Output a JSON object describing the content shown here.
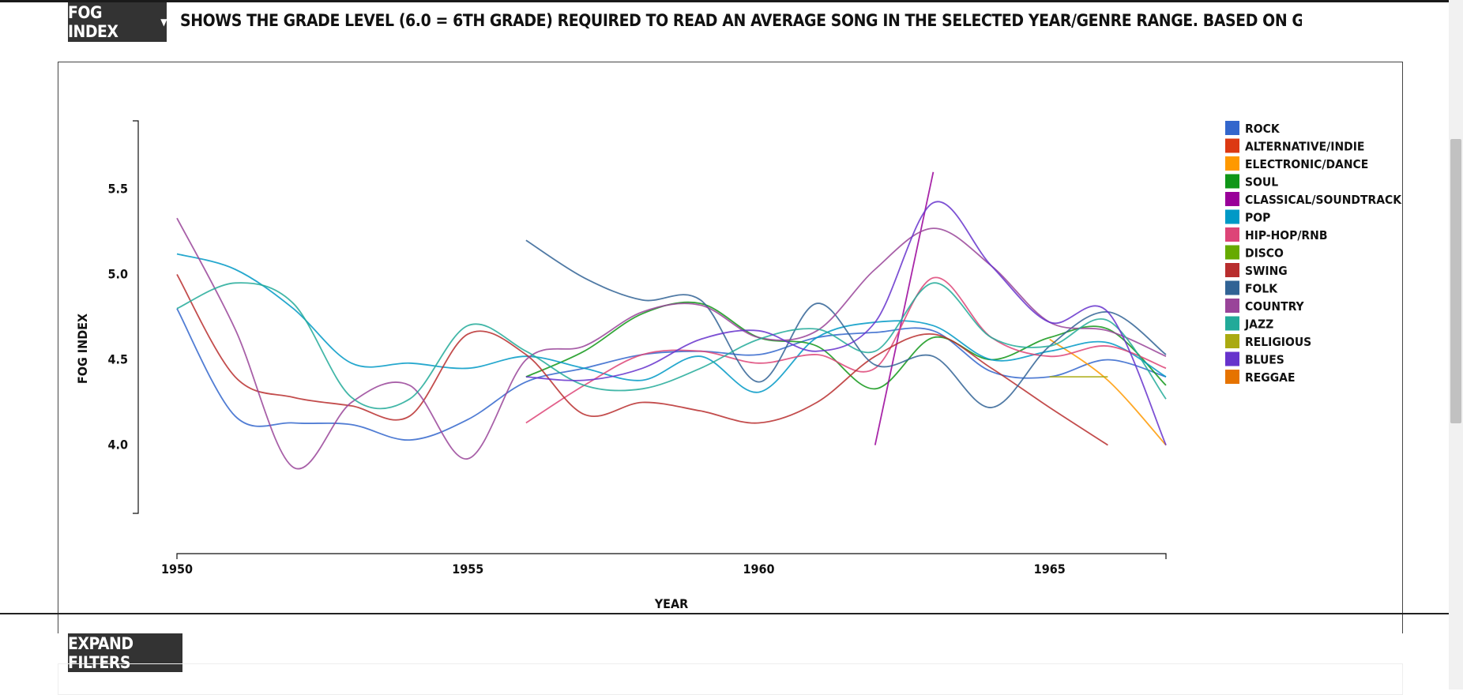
{
  "header": {
    "metric_label": "FOG INDEX",
    "description": "SHOWS THE GRADE LEVEL (6.0 = 6TH GRADE) REQUIRED TO READ AN AVERAGE SONG IN THE SELECTED YEAR/GENRE RANGE. BASED ON GUNNING-FOG READABILITY INDEX"
  },
  "controls": {
    "expand_filters_label": "EXPAND FILTERS"
  },
  "chart_data": {
    "type": "line",
    "xlabel": "YEAR",
    "ylabel": "FOG INDEX",
    "xlim": [
      1950,
      1967
    ],
    "ylim": [
      3.6,
      5.9
    ],
    "x_ticks": [
      1950,
      1955,
      1960,
      1965
    ],
    "y_ticks": [
      4.0,
      4.5,
      5.0,
      5.5
    ],
    "x_tick_labels": [
      "1950",
      "1955",
      "1960",
      "1965"
    ],
    "y_tick_labels": [
      "4.0",
      "4.5",
      "5.0",
      "5.5"
    ],
    "legend_position": "right",
    "grid": false,
    "series": [
      {
        "name": "ROCK",
        "color": "#3366cc",
        "points": [
          [
            1950,
            4.8
          ],
          [
            1951,
            4.17
          ],
          [
            1952,
            4.13
          ],
          [
            1953,
            4.12
          ],
          [
            1954,
            4.03
          ],
          [
            1955,
            4.15
          ],
          [
            1956,
            4.37
          ],
          [
            1957,
            4.45
          ],
          [
            1958,
            4.53
          ],
          [
            1959,
            4.55
          ],
          [
            1960,
            4.53
          ],
          [
            1961,
            4.63
          ],
          [
            1962,
            4.66
          ],
          [
            1963,
            4.67
          ],
          [
            1964,
            4.43
          ],
          [
            1965,
            4.4
          ],
          [
            1966,
            4.5
          ],
          [
            1967,
            4.4
          ]
        ]
      },
      {
        "name": "ALTERNATIVE/INDIE",
        "color": "#dc3912",
        "points": []
      },
      {
        "name": "ELECTRONIC/DANCE",
        "color": "#ff9900",
        "points": [
          [
            1965,
            4.62
          ],
          [
            1966,
            4.38
          ],
          [
            1967,
            4.0
          ]
        ]
      },
      {
        "name": "SOUL",
        "color": "#109618",
        "points": [
          [
            1956,
            4.4
          ],
          [
            1957,
            4.55
          ],
          [
            1958,
            4.77
          ],
          [
            1959,
            4.83
          ],
          [
            1960,
            4.63
          ],
          [
            1961,
            4.58
          ],
          [
            1962,
            4.33
          ],
          [
            1963,
            4.63
          ],
          [
            1964,
            4.5
          ],
          [
            1965,
            4.63
          ],
          [
            1966,
            4.68
          ],
          [
            1967,
            4.35
          ]
        ]
      },
      {
        "name": "CLASSICAL/SOUNDTRACK",
        "color": "#990099",
        "points": [
          [
            1962,
            4.0
          ],
          [
            1963,
            5.6
          ]
        ]
      },
      {
        "name": "POP",
        "color": "#0099c6",
        "points": [
          [
            1950,
            5.12
          ],
          [
            1951,
            5.03
          ],
          [
            1952,
            4.8
          ],
          [
            1953,
            4.48
          ],
          [
            1954,
            4.48
          ],
          [
            1955,
            4.45
          ],
          [
            1956,
            4.52
          ],
          [
            1957,
            4.45
          ],
          [
            1958,
            4.38
          ],
          [
            1959,
            4.52
          ],
          [
            1960,
            4.31
          ],
          [
            1961,
            4.63
          ],
          [
            1962,
            4.72
          ],
          [
            1963,
            4.7
          ],
          [
            1964,
            4.5
          ],
          [
            1965,
            4.55
          ],
          [
            1966,
            4.6
          ],
          [
            1967,
            4.4
          ]
        ]
      },
      {
        "name": "HIP-HOP/RNB",
        "color": "#dd4477",
        "points": [
          [
            1956,
            4.13
          ],
          [
            1957,
            4.35
          ],
          [
            1958,
            4.53
          ],
          [
            1959,
            4.55
          ],
          [
            1960,
            4.48
          ],
          [
            1961,
            4.53
          ],
          [
            1962,
            4.45
          ],
          [
            1963,
            4.98
          ],
          [
            1964,
            4.63
          ],
          [
            1965,
            4.52
          ],
          [
            1966,
            4.58
          ],
          [
            1967,
            4.45
          ]
        ]
      },
      {
        "name": "DISCO",
        "color": "#66aa00",
        "points": []
      },
      {
        "name": "SWING",
        "color": "#b82e2e",
        "points": [
          [
            1950,
            5.0
          ],
          [
            1951,
            4.4
          ],
          [
            1952,
            4.28
          ],
          [
            1953,
            4.23
          ],
          [
            1954,
            4.17
          ],
          [
            1955,
            4.65
          ],
          [
            1956,
            4.53
          ],
          [
            1957,
            4.18
          ],
          [
            1958,
            4.25
          ],
          [
            1959,
            4.2
          ],
          [
            1960,
            4.13
          ],
          [
            1961,
            4.25
          ],
          [
            1962,
            4.52
          ],
          [
            1963,
            4.65
          ],
          [
            1964,
            4.45
          ],
          [
            1965,
            4.22
          ],
          [
            1966,
            4.0
          ]
        ]
      },
      {
        "name": "FOLK",
        "color": "#316395",
        "points": [
          [
            1956,
            5.2
          ],
          [
            1957,
            4.98
          ],
          [
            1958,
            4.85
          ],
          [
            1959,
            4.85
          ],
          [
            1960,
            4.37
          ],
          [
            1961,
            4.83
          ],
          [
            1962,
            4.47
          ],
          [
            1963,
            4.52
          ],
          [
            1964,
            4.22
          ],
          [
            1965,
            4.58
          ],
          [
            1966,
            4.78
          ],
          [
            1967,
            4.53
          ]
        ]
      },
      {
        "name": "COUNTRY",
        "color": "#994499",
        "points": [
          [
            1950,
            5.33
          ],
          [
            1951,
            4.68
          ],
          [
            1952,
            3.87
          ],
          [
            1953,
            4.25
          ],
          [
            1954,
            4.35
          ],
          [
            1955,
            3.92
          ],
          [
            1956,
            4.5
          ],
          [
            1957,
            4.58
          ],
          [
            1958,
            4.78
          ],
          [
            1959,
            4.82
          ],
          [
            1960,
            4.63
          ],
          [
            1961,
            4.67
          ],
          [
            1962,
            5.03
          ],
          [
            1963,
            5.27
          ],
          [
            1964,
            5.05
          ],
          [
            1965,
            4.72
          ],
          [
            1966,
            4.67
          ],
          [
            1967,
            4.52
          ]
        ]
      },
      {
        "name": "JAZZ",
        "color": "#22aa99",
        "points": [
          [
            1950,
            4.8
          ],
          [
            1951,
            4.95
          ],
          [
            1952,
            4.83
          ],
          [
            1953,
            4.28
          ],
          [
            1954,
            4.27
          ],
          [
            1955,
            4.7
          ],
          [
            1956,
            4.55
          ],
          [
            1957,
            4.35
          ],
          [
            1958,
            4.33
          ],
          [
            1959,
            4.45
          ],
          [
            1960,
            4.62
          ],
          [
            1961,
            4.68
          ],
          [
            1962,
            4.55
          ],
          [
            1963,
            4.95
          ],
          [
            1964,
            4.63
          ],
          [
            1965,
            4.58
          ],
          [
            1966,
            4.73
          ],
          [
            1967,
            4.27
          ]
        ]
      },
      {
        "name": "RELIGIOUS",
        "color": "#aaaa11",
        "points": [
          [
            1965,
            4.4
          ],
          [
            1966,
            4.4
          ]
        ]
      },
      {
        "name": "BLUES",
        "color": "#6633cc",
        "points": [
          [
            1956,
            4.4
          ],
          [
            1957,
            4.38
          ],
          [
            1958,
            4.45
          ],
          [
            1959,
            4.62
          ],
          [
            1960,
            4.67
          ],
          [
            1961,
            4.55
          ],
          [
            1962,
            4.72
          ],
          [
            1963,
            5.42
          ],
          [
            1964,
            5.05
          ],
          [
            1965,
            4.72
          ],
          [
            1966,
            4.78
          ],
          [
            1967,
            4.0
          ]
        ]
      },
      {
        "name": "REGGAE",
        "color": "#e67300",
        "points": []
      }
    ]
  }
}
